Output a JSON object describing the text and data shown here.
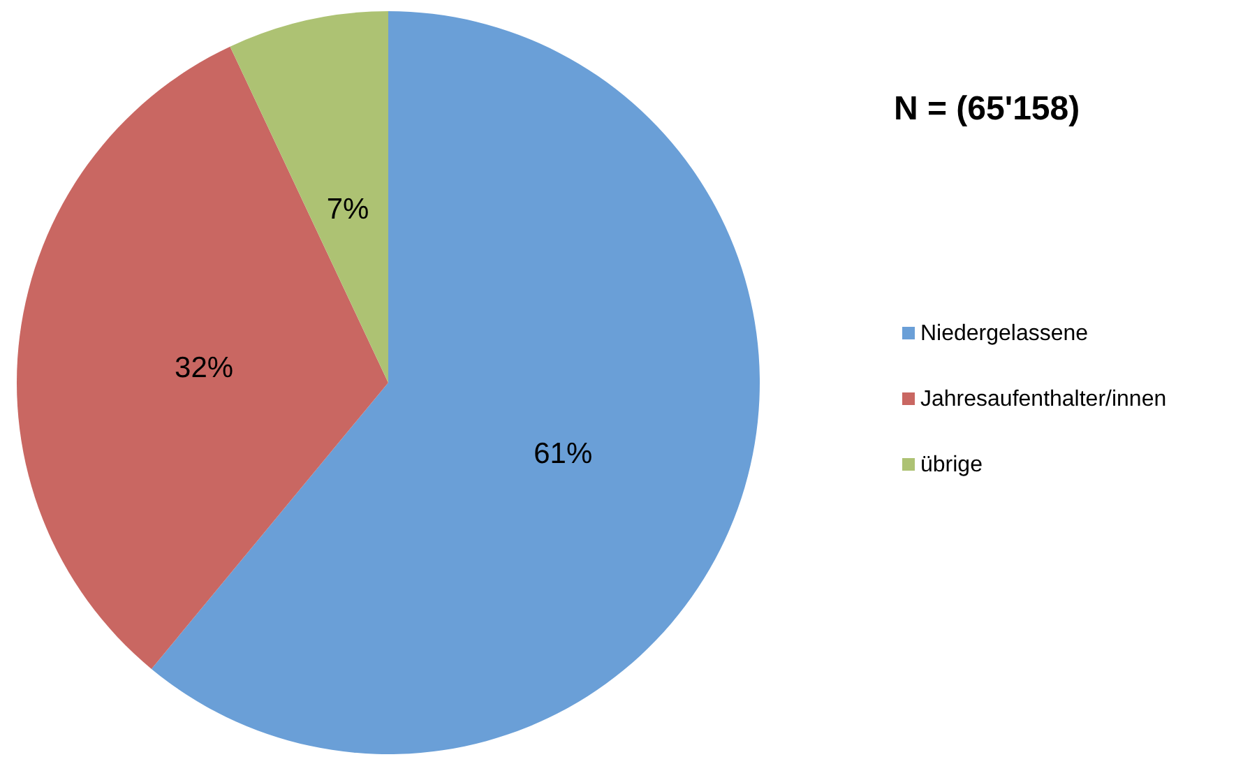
{
  "chart_data": {
    "type": "pie",
    "title": "N = (65'158)",
    "categories": [
      "Niedergelassene",
      "Jahresaufenthalter/innen",
      "übrige"
    ],
    "values": [
      61,
      32,
      7
    ],
    "value_labels": [
      "61%",
      "32%",
      "7%"
    ],
    "colors": [
      "#6a9fd7",
      "#c96762",
      "#adc273"
    ],
    "legend": "right"
  }
}
